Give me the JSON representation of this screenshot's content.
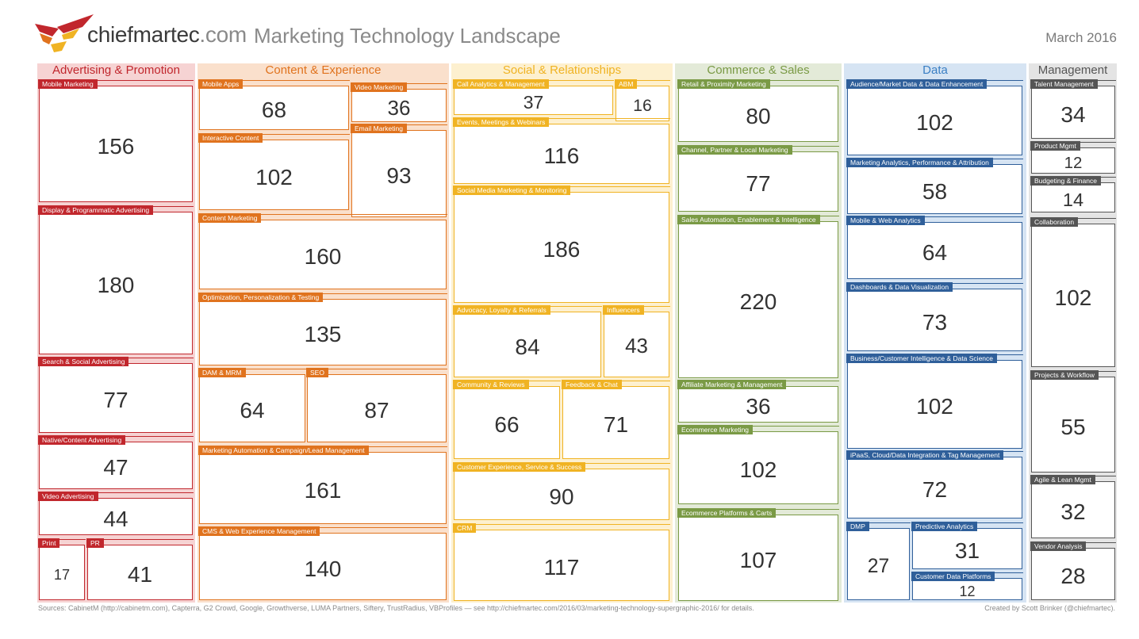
{
  "header": {
    "brand": "chiefmartec",
    "brand_suffix": ".com",
    "title": "Marketing Technology Landscape",
    "date": "March 2016"
  },
  "columns": [
    {
      "name": "Advertising & Promotion",
      "color": "#c1272d",
      "bg": "#f6d3d3",
      "boxes": [
        {
          "label": "Mobile Marketing",
          "value": "156"
        },
        {
          "label": "Display & Programmatic Advertising",
          "value": "180"
        },
        {
          "label": "Search & Social Advertising",
          "value": "77"
        },
        {
          "label": "Native/Content Advertising",
          "value": "47"
        },
        {
          "label": "Video Advertising",
          "value": "44"
        },
        {
          "label": "Print",
          "value": "17"
        },
        {
          "label": "PR",
          "value": "41"
        }
      ]
    },
    {
      "name": "Content & Experience",
      "color": "#e0731e",
      "bg": "#fae0cc",
      "boxes": [
        {
          "label": "Mobile Apps",
          "value": "68"
        },
        {
          "label": "Video Marketing",
          "value": "36"
        },
        {
          "label": "Interactive Content",
          "value": "102"
        },
        {
          "label": "Email Marketing",
          "value": "93"
        },
        {
          "label": "Content Marketing",
          "value": "160"
        },
        {
          "label": "Optimization, Personalization & Testing",
          "value": "135"
        },
        {
          "label": "DAM & MRM",
          "value": "64"
        },
        {
          "label": "SEO",
          "value": "87"
        },
        {
          "label": "Marketing Automation & Campaign/Lead Management",
          "value": "161"
        },
        {
          "label": "CMS & Web Experience Management",
          "value": "140"
        }
      ]
    },
    {
      "name": "Social & Relationships",
      "color": "#f0b323",
      "bg": "#fdf0cf",
      "boxes": [
        {
          "label": "Call Analytics & Management",
          "value": "37"
        },
        {
          "label": "ABM",
          "value": "16"
        },
        {
          "label": "Events, Meetings & Webinars",
          "value": "116"
        },
        {
          "label": "Social Media Marketing & Monitoring",
          "value": "186"
        },
        {
          "label": "Advocacy, Loyalty & Referrals",
          "value": "84"
        },
        {
          "label": "Influencers",
          "value": "43"
        },
        {
          "label": "Community & Reviews",
          "value": "66"
        },
        {
          "label": "Feedback & Chat",
          "value": "71"
        },
        {
          "label": "Customer Experience, Service & Success",
          "value": "90"
        },
        {
          "label": "CRM",
          "value": "117"
        }
      ]
    },
    {
      "name": "Commerce & Sales",
      "color": "#7a9a45",
      "bg": "#e3ead8",
      "boxes": [
        {
          "label": "Retail & Proximity Marketing",
          "value": "80"
        },
        {
          "label": "Channel, Partner & Local Marketing",
          "value": "77"
        },
        {
          "label": "Sales Automation, Enablement & Intelligence",
          "value": "220"
        },
        {
          "label": "Affiliate Marketing & Management",
          "value": "36"
        },
        {
          "label": "Ecommerce Marketing",
          "value": "102"
        },
        {
          "label": "Ecommerce Platforms & Carts",
          "value": "107"
        }
      ]
    },
    {
      "name": "Data",
      "color": "#2f5f9a",
      "bg": "#d6e4f3",
      "header_color": "#3a7fc4",
      "boxes": [
        {
          "label": "Audience/Market Data & Data Enhancement",
          "value": "102"
        },
        {
          "label": "Marketing Analytics, Performance & Attribution",
          "value": "58"
        },
        {
          "label": "Mobile & Web Analytics",
          "value": "64"
        },
        {
          "label": "Dashboards & Data Visualization",
          "value": "73"
        },
        {
          "label": "Business/Customer Intelligence & Data Science",
          "value": "102"
        },
        {
          "label": "iPaaS, Cloud/Data Integration & Tag Management",
          "value": "72"
        },
        {
          "label": "DMP",
          "value": "27"
        },
        {
          "label": "Predictive Analytics",
          "value": "31"
        },
        {
          "label": "Customer Data Platforms",
          "value": "12"
        }
      ]
    },
    {
      "name": "Management",
      "color": "#555555",
      "bg": "#e4e4e4",
      "boxes": [
        {
          "label": "Talent Management",
          "value": "34"
        },
        {
          "label": "Product Mgmt",
          "value": "12"
        },
        {
          "label": "Budgeting & Finance",
          "value": "14"
        },
        {
          "label": "Collaboration",
          "value": "102"
        },
        {
          "label": "Projects & Workflow",
          "value": "55"
        },
        {
          "label": "Agile & Lean Mgmt",
          "value": "32"
        },
        {
          "label": "Vendor Analysis",
          "value": "28"
        }
      ]
    }
  ],
  "footer": {
    "sources": "Sources: CabinetM (http://cabinetm.com), Capterra, G2 Crowd, Google, Growthverse, LUMA Partners, Siftery, TrustRadius, VBProfiles — see http://chiefmartec.com/2016/03/marketing-technology-supergraphic-2016/ for details.",
    "credit": "Created by Scott Brinker (@chiefmartec)."
  }
}
